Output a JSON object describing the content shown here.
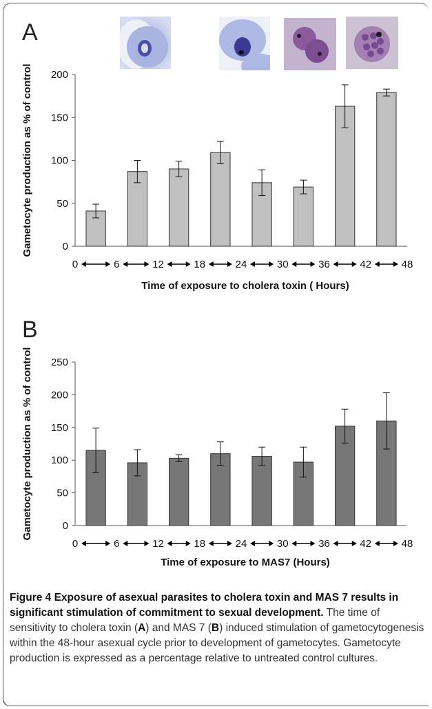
{
  "figure": {
    "caption": {
      "lead": "Figure 4 Exposure of asexual parasites to cholera toxin and MAS 7 results in significant stimulation of commitment to sexual development.",
      "text_1": " The time of sensitivity to cholera toxin (",
      "ref_a": "A",
      "text_2": ") and MAS 7 (",
      "ref_b": "B",
      "text_3": ") induced stimulation of gametocytogenesis within the 48-hour asexual cycle prior to development of gametocytes. Gametocyte production is expressed as a percentage relative to untreated control cultures."
    },
    "micrographs": [
      "ring-stage-parasite",
      "trophozoite",
      "dividing-schizont",
      "mature-schizont"
    ]
  },
  "chart_data": [
    {
      "type": "bar",
      "panel": "A",
      "categories": [
        "0-6",
        "6-12",
        "12-18",
        "18-24",
        "24-30",
        "30-36",
        "36-42",
        "42-48"
      ],
      "x_ticks": [
        "0",
        "6",
        "12",
        "18",
        "24",
        "30",
        "36",
        "42",
        "48"
      ],
      "values": [
        41,
        87,
        90,
        109,
        74,
        69,
        163,
        179
      ],
      "errors": [
        8,
        13,
        9,
        13,
        15,
        8,
        25,
        4
      ],
      "xlabel": "Time of exposure to cholera toxin ( Hours)",
      "ylabel": "Gametocyte production as % of control",
      "ylim": [
        0,
        200
      ],
      "y_ticks": [
        0,
        50,
        100,
        150,
        200
      ],
      "bar_color": "#c0c0c0",
      "grid": false
    },
    {
      "type": "bar",
      "panel": "B",
      "categories": [
        "0-6",
        "6-12",
        "12-18",
        "18-24",
        "24-30",
        "30-36",
        "36-42",
        "42-48"
      ],
      "x_ticks": [
        "0",
        "6",
        "12",
        "18",
        "24",
        "30",
        "36",
        "42",
        "48"
      ],
      "values": [
        115,
        96,
        103,
        110,
        106,
        97,
        152,
        160
      ],
      "errors": [
        34,
        20,
        5,
        18,
        14,
        23,
        26,
        43
      ],
      "xlabel": "Time of exposure to MAS7 (Hours)",
      "ylabel": "Gametocyte production as % of control",
      "ylim": [
        0,
        250
      ],
      "y_ticks": [
        0,
        50,
        100,
        150,
        200,
        250
      ],
      "bar_color": "#777777",
      "grid": false
    }
  ]
}
